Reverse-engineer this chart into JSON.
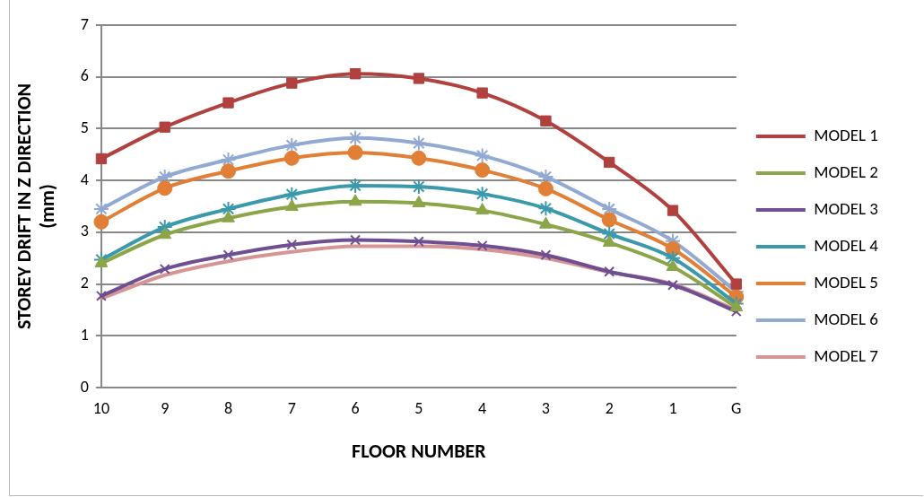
{
  "chart_data": {
    "type": "line",
    "xlabel": "FLOOR NUMBER",
    "ylabel": "STOREY DRIFT IN Z DIRECTION (mm)",
    "categories": [
      "10",
      "9",
      "8",
      "7",
      "6",
      "5",
      "4",
      "3",
      "2",
      "1",
      "G"
    ],
    "ylim": [
      0,
      7
    ],
    "yticks": [
      0,
      1,
      2,
      3,
      4,
      5,
      6,
      7
    ],
    "grid": "y",
    "legend": "right",
    "series": [
      {
        "name": "MODEL 1",
        "color": "#b0413e",
        "marker": "square",
        "values": [
          4.42,
          5.03,
          5.5,
          5.88,
          6.06,
          5.97,
          5.69,
          5.15,
          4.35,
          3.42,
          2.0
        ]
      },
      {
        "name": "MODEL 2",
        "color": "#8ba548",
        "marker": "triangle",
        "values": [
          2.4,
          2.95,
          3.27,
          3.49,
          3.59,
          3.56,
          3.42,
          3.15,
          2.8,
          2.33,
          1.55
        ]
      },
      {
        "name": "MODEL 3",
        "color": "#6f4f91",
        "marker": "x",
        "values": [
          1.77,
          2.29,
          2.56,
          2.76,
          2.85,
          2.82,
          2.74,
          2.56,
          2.24,
          1.98,
          1.47
        ]
      },
      {
        "name": "MODEL 4",
        "color": "#3b99ac",
        "marker": "cross",
        "values": [
          2.47,
          3.1,
          3.45,
          3.73,
          3.9,
          3.88,
          3.74,
          3.46,
          2.97,
          2.5,
          1.62
        ]
      },
      {
        "name": "MODEL 5",
        "color": "#e07f35",
        "marker": "circle",
        "values": [
          3.2,
          3.85,
          4.18,
          4.43,
          4.54,
          4.43,
          4.2,
          3.84,
          3.24,
          2.68,
          1.75
        ]
      },
      {
        "name": "MODEL 6",
        "color": "#92a9d2",
        "marker": "cross",
        "values": [
          3.45,
          4.07,
          4.4,
          4.68,
          4.82,
          4.72,
          4.48,
          4.07,
          3.45,
          2.83,
          1.85
        ]
      },
      {
        "name": "MODEL 7",
        "color": "#d69595",
        "marker": "none",
        "values": [
          1.72,
          2.17,
          2.44,
          2.62,
          2.73,
          2.73,
          2.67,
          2.5,
          2.23,
          2.0,
          1.5
        ]
      }
    ]
  }
}
